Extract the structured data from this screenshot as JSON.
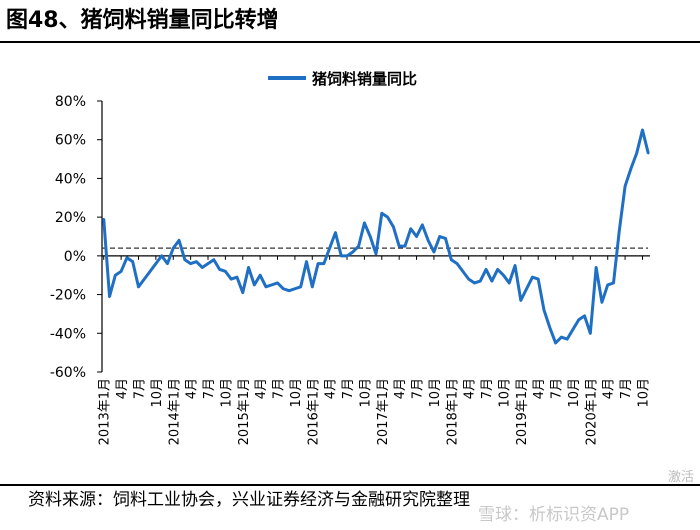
{
  "figure": {
    "title": "图48、猪饲料销量同比转增",
    "source": "资料来源：饲料工业协会，兴业证券经济与金融研究院整理",
    "watermark": "雪球：析标识资APP",
    "corner_mark": "激活"
  },
  "chart_data": {
    "type": "line",
    "title": "",
    "xlabel": "",
    "ylabel": "",
    "ylim": [
      -60,
      80
    ],
    "yticks": [
      "80%",
      "60%",
      "40%",
      "20%",
      "0%",
      "-20%",
      "-40%",
      "-60%"
    ],
    "ytick_values": [
      80,
      60,
      40,
      20,
      0,
      -20,
      -40,
      -60
    ],
    "xticks": [
      "2013年1月",
      "4月",
      "7月",
      "10月",
      "2014年1月",
      "4月",
      "7月",
      "10月",
      "2015年1月",
      "4月",
      "7月",
      "10月",
      "2016年1月",
      "4月",
      "7月",
      "10月",
      "2017年1月",
      "4月",
      "7月",
      "10月",
      "2018年1月",
      "4月",
      "7月",
      "10月",
      "2019年1月",
      "4月",
      "7月",
      "10月",
      "2020年1月",
      "4月",
      "7月",
      "10月"
    ],
    "legend_position": "top-center",
    "grid": false,
    "reference_line": {
      "value": 4,
      "style": "dashed",
      "color": "#333333"
    },
    "series": [
      {
        "name": "猪饲料销量同比",
        "color": "#1f6fc5",
        "values": [
          19,
          -21,
          -10,
          -8,
          -1,
          -3,
          -16,
          -12,
          -8,
          -4,
          0,
          -4,
          4,
          8,
          -2,
          -4,
          -3,
          -6,
          -4,
          -2,
          -7,
          -8,
          -12,
          -11,
          -19,
          -6,
          -15,
          -10,
          -16,
          -15,
          -14,
          -17,
          -18,
          -17,
          -16,
          -3,
          -16,
          -4,
          -4,
          4,
          12,
          0,
          0,
          2,
          5,
          17,
          10,
          1,
          22,
          20,
          15,
          5,
          5,
          14,
          10,
          16,
          8,
          2,
          10,
          9,
          -2,
          -4,
          -8,
          -12,
          -14,
          -13,
          -7,
          -13,
          -7,
          -10,
          -14,
          -5,
          -23,
          -17,
          -11,
          -12,
          -28,
          -37,
          -45,
          -42,
          -43,
          -38,
          -33,
          -31,
          -40,
          -6,
          -24,
          -15,
          -14,
          13,
          36,
          45,
          53,
          65,
          53
        ]
      }
    ]
  }
}
